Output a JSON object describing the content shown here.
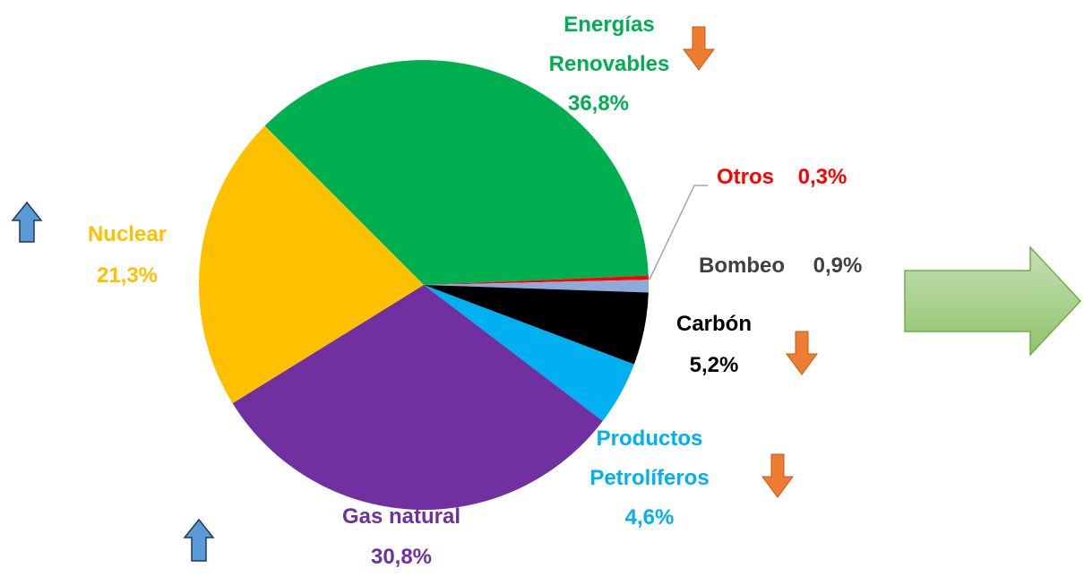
{
  "chart_data": {
    "type": "pie",
    "categories": [
      "Energías Renovables",
      "Otros",
      "Bombeo",
      "Carbón",
      "Productos Petrolíferos",
      "Gas natural",
      "Nuclear"
    ],
    "values": [
      36.8,
      0.3,
      0.9,
      5.2,
      4.6,
      30.8,
      21.3
    ],
    "value_labels": [
      "36,8%",
      "0,3%",
      "0,9%",
      "5,2%",
      "4,6%",
      "30,8%",
      "21,3%"
    ],
    "colors": [
      "#00b050",
      "#ff0000",
      "#8eaadb",
      "#000000",
      "#00b0f0",
      "#7030a0",
      "#ffc000"
    ],
    "label_colors": [
      "#00b050",
      "#ff0000",
      "#404040",
      "#000000",
      "#00b0f0",
      "#7030a0",
      "#ffc000"
    ]
  }
}
